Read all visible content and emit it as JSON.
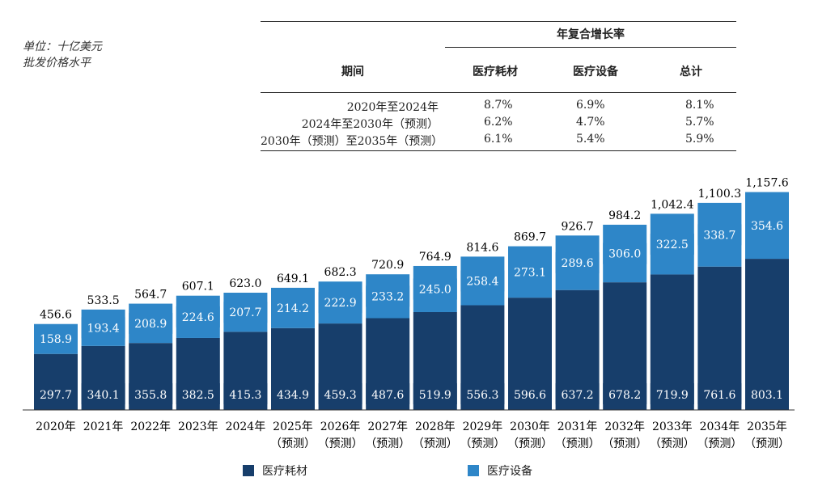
{
  "unit_note": {
    "line1": "单位：十亿美元",
    "line2": "批发价格水平"
  },
  "cagr_table": {
    "group_header": "年复合增长率",
    "col_period": "期间",
    "col_consumables": "医疗耗材",
    "col_equipment": "医疗设备",
    "col_total": "总计",
    "rows": [
      {
        "period": "2020年至2024年",
        "consumables": "8.7%",
        "equipment": "6.9%",
        "total": "8.1%"
      },
      {
        "period": "2024年至2030年（预测）",
        "consumables": "6.2%",
        "equipment": "4.7%",
        "total": "5.7%"
      },
      {
        "period": "2030年（预测）至2035年（预测）",
        "consumables": "6.1%",
        "equipment": "5.4%",
        "total": "5.9%"
      }
    ]
  },
  "colors": {
    "consumables": "#173e6b",
    "equipment": "#2e86c8",
    "label_text": "#ffffff"
  },
  "chart_data": {
    "type": "bar",
    "stacked": true,
    "categories": [
      "2020年",
      "2021年",
      "2022年",
      "2023年",
      "2024年",
      "2025年",
      "2026年",
      "2027年",
      "2028年",
      "2029年",
      "2030年",
      "2031年",
      "2032年",
      "2033年",
      "2034年",
      "2035年"
    ],
    "category_sublabels": [
      "",
      "",
      "",
      "",
      "",
      "（预测）",
      "（预测）",
      "（预测）",
      "（预测）",
      "（预测）",
      "（预测）",
      "（预测）",
      "（预测）",
      "（预测）",
      "（预测）",
      "（预测）"
    ],
    "series": [
      {
        "name": "医疗耗材",
        "values": [
          297.7,
          340.1,
          355.8,
          382.5,
          415.3,
          434.9,
          459.3,
          487.6,
          519.9,
          556.3,
          596.6,
          637.2,
          678.2,
          719.9,
          761.6,
          803.1
        ],
        "labels": [
          "297.7",
          "340.1",
          "355.8",
          "382.5",
          "415.3",
          "434.9",
          "459.3",
          "487.6",
          "519.9",
          "556.3",
          "596.6",
          "637.2",
          "678.2",
          "719.9",
          "761.6",
          "803.1"
        ]
      },
      {
        "name": "医疗设备",
        "values": [
          158.9,
          193.4,
          208.9,
          224.6,
          207.7,
          214.2,
          222.9,
          233.2,
          245.0,
          258.4,
          273.1,
          289.6,
          306.0,
          322.5,
          338.7,
          354.6
        ],
        "labels": [
          "158.9",
          "193.4",
          "208.9",
          "224.6",
          "207.7",
          "214.2",
          "222.9",
          "233.2",
          "245.0",
          "258.4",
          "273.1",
          "289.6",
          "306.0",
          "322.5",
          "338.7",
          "354.6"
        ]
      }
    ],
    "totals": [
      456.6,
      533.5,
      564.7,
      607.1,
      623.0,
      649.1,
      682.3,
      720.9,
      764.9,
      814.6,
      869.7,
      926.7,
      984.2,
      1042.4,
      1100.3,
      1157.6
    ],
    "total_labels": [
      "456.6",
      "533.5",
      "564.7",
      "607.1",
      "623.0",
      "649.1",
      "682.3",
      "720.9",
      "764.9",
      "814.6",
      "869.7",
      "926.7",
      "984.2",
      "1,042.4",
      "1,100.3",
      "1,157.6"
    ],
    "ylim": [
      0,
      1160
    ],
    "grid": false,
    "legend_position": "bottom"
  }
}
